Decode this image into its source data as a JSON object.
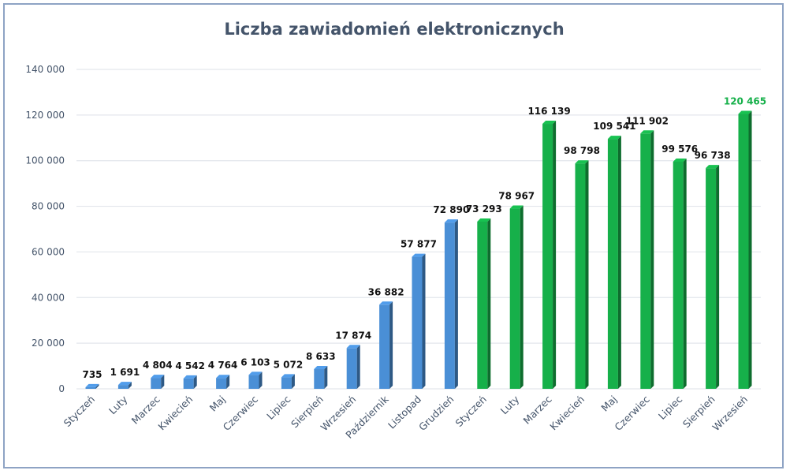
{
  "chart_data": {
    "type": "bar",
    "title": "Liczba zawiadomień elektronicznych",
    "xlabel": "",
    "ylabel": "",
    "ylim": [
      0,
      140000
    ],
    "yticks": [
      0,
      20000,
      40000,
      60000,
      80000,
      100000,
      120000,
      140000
    ],
    "ytick_labels": [
      "0",
      "20 000",
      "40 000",
      "60 000",
      "80 000",
      "100 000",
      "120 000",
      "140 000"
    ],
    "grid": true,
    "categories": [
      "Styczeń",
      "Luty",
      "Marzec",
      "Kwiecień",
      "Maj",
      "Czerwiec",
      "Lipiec",
      "Sierpień",
      "Wrzesień",
      "Październik",
      "Listopad",
      "Grudzień",
      "Styczeń",
      "Luty",
      "Marzec",
      "Kwiecień",
      "Maj",
      "Czerwiec",
      "Lipiec",
      "Sierpień",
      "Wrzesień"
    ],
    "values": [
      735,
      1691,
      4804,
      4542,
      4764,
      6103,
      5072,
      8633,
      17874,
      36882,
      57877,
      72890,
      73293,
      78967,
      116139,
      98798,
      109541,
      111902,
      99576,
      96738,
      120465
    ],
    "data_labels": [
      "735",
      "1 691",
      "4 804",
      "4 542",
      "4 764",
      "6 103",
      "5 072",
      "8 633",
      "17 874",
      "36 882",
      "57 877",
      "72 890",
      "73 293",
      "78 967",
      "116 139",
      "98 798",
      "109 541",
      "111 902",
      "99 576",
      "96 738",
      "120 465"
    ],
    "colors": {
      "first_period": "#4a8fd6",
      "second_period": "#16b04a",
      "highlight_label": "#16b04a"
    },
    "highlight_index": 20
  }
}
